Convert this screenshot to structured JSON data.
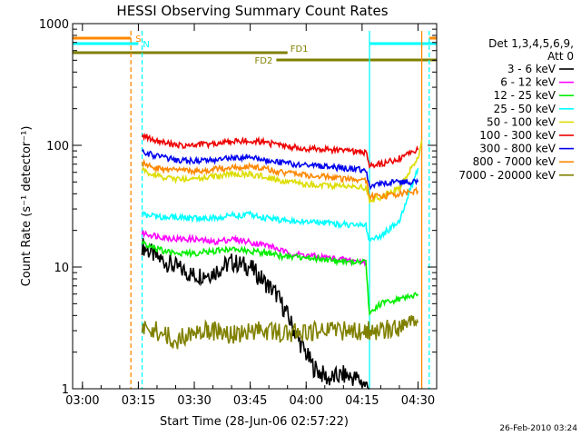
{
  "chart_data": {
    "type": "line",
    "title": "HESSI Observing Summary Count Rates",
    "xlabel": "Start Time (28-Jun-06 02:57:22)",
    "ylabel": "Count Rate (s⁻¹ detector⁻¹)",
    "y_scale": "log",
    "xlim": [
      "02:57:22",
      "04:35:00"
    ],
    "ylim": [
      1,
      1000
    ],
    "x_ticks": [
      "03:00",
      "03:15",
      "03:30",
      "03:45",
      "04:00",
      "04:15",
      "04:30"
    ],
    "y_ticks": [
      "1",
      "10",
      "100",
      "1000"
    ],
    "legend_header": [
      "Det 1,3,4,5,6,9,",
      "Att 0"
    ],
    "legend_position": "right",
    "footer": "26-Feb-2010 03:24",
    "series": [
      {
        "name": "3 - 6 keV",
        "color": "#000000",
        "x": [
          "03:16",
          "03:20",
          "03:25",
          "03:30",
          "03:35",
          "03:40",
          "03:45",
          "03:48",
          "03:52",
          "03:55",
          "03:58",
          "04:02",
          "04:06",
          "04:10",
          "04:14",
          "04:17"
        ],
        "y": [
          15,
          12,
          10,
          8.5,
          9,
          11,
          10,
          8,
          6,
          4,
          2.5,
          1.5,
          1.2,
          1.3,
          1.2,
          1
        ]
      },
      {
        "name": "6 - 12 keV",
        "color": "#ff00ff",
        "x": [
          "03:16",
          "03:20",
          "03:25",
          "03:30",
          "03:35",
          "03:40",
          "03:45",
          "03:50",
          "03:55",
          "04:00",
          "04:05",
          "04:10",
          "04:16"
        ],
        "y": [
          19,
          18,
          17,
          17,
          16,
          17,
          16,
          15,
          13,
          12.5,
          12,
          11.5,
          11
        ]
      },
      {
        "name": "12 - 25 keV",
        "color": "#00ee00",
        "x": [
          "03:16",
          "03:20",
          "03:25",
          "03:30",
          "03:35",
          "03:40",
          "03:45",
          "03:50",
          "03:55",
          "04:00",
          "04:05",
          "04:10",
          "04:16",
          "04:17",
          "04:20",
          "04:25",
          "04:30"
        ],
        "y": [
          16,
          14,
          13,
          13,
          13.5,
          14,
          13.5,
          13,
          12,
          12,
          11.5,
          11,
          11,
          4,
          5,
          5.5,
          6
        ]
      },
      {
        "name": "25 - 50 keV",
        "color": "#00ffff",
        "x": [
          "03:16",
          "03:20",
          "03:25",
          "03:30",
          "03:35",
          "03:40",
          "03:45",
          "03:50",
          "03:55",
          "04:00",
          "04:05",
          "04:10",
          "04:16",
          "04:17",
          "04:20",
          "04:25",
          "04:30"
        ],
        "y": [
          27,
          26,
          25.5,
          25,
          25.5,
          26.5,
          27,
          25,
          24,
          23.5,
          23,
          22.5,
          22,
          16,
          18,
          24,
          65
        ]
      },
      {
        "name": "50 - 100 keV",
        "color": "#dddd00",
        "x": [
          "03:16",
          "03:20",
          "03:25",
          "03:30",
          "03:35",
          "03:40",
          "03:45",
          "03:50",
          "03:55",
          "04:00",
          "04:05",
          "04:10",
          "04:16",
          "04:17",
          "04:20",
          "04:25",
          "04:30",
          "04:31"
        ],
        "y": [
          62,
          56,
          53,
          53,
          55,
          58,
          58,
          54,
          50,
          48,
          47,
          46,
          45,
          36,
          37,
          45,
          80,
          110
        ]
      },
      {
        "name": "100 - 300 keV",
        "color": "#ee0000",
        "x": [
          "03:16",
          "03:20",
          "03:25",
          "03:30",
          "03:35",
          "03:40",
          "03:45",
          "03:50",
          "03:55",
          "04:00",
          "04:05",
          "04:10",
          "04:16",
          "04:17",
          "04:20",
          "04:25",
          "04:30"
        ],
        "y": [
          120,
          110,
          100,
          100,
          103,
          108,
          110,
          104,
          98,
          94,
          92,
          90,
          87,
          68,
          70,
          78,
          92
        ]
      },
      {
        "name": "300 - 800 keV",
        "color": "#0000ee",
        "x": [
          "03:16",
          "03:20",
          "03:25",
          "03:30",
          "03:35",
          "03:40",
          "03:45",
          "03:50",
          "03:55",
          "04:00",
          "04:05",
          "04:10",
          "04:16",
          "04:17",
          "04:20",
          "04:25",
          "04:30"
        ],
        "y": [
          88,
          81,
          76,
          74,
          76,
          79,
          80,
          75,
          71,
          69,
          67,
          65,
          63,
          46,
          48,
          50,
          50
        ]
      },
      {
        "name": "800 - 7000 keV",
        "color": "#ff8800",
        "x": [
          "03:16",
          "03:20",
          "03:25",
          "03:30",
          "03:35",
          "03:40",
          "03:45",
          "03:50",
          "03:55",
          "04:00",
          "04:05",
          "04:10",
          "04:16",
          "04:17",
          "04:20",
          "04:25",
          "04:30"
        ],
        "y": [
          71,
          65,
          62,
          61,
          63,
          66,
          67,
          63,
          59,
          57,
          55,
          53,
          52,
          38,
          38,
          40,
          42
        ]
      },
      {
        "name": "7000 - 20000 keV",
        "color": "#808000",
        "x": [
          "03:16",
          "03:20",
          "03:25",
          "03:30",
          "03:35",
          "03:40",
          "03:45",
          "03:50",
          "03:55",
          "04:00",
          "04:05",
          "04:10",
          "04:16",
          "04:20",
          "04:25",
          "04:30"
        ],
        "y": [
          3,
          3,
          2.5,
          3,
          3,
          2.8,
          3,
          3,
          2.8,
          3,
          3,
          3,
          3,
          3,
          3.2,
          3.5
        ]
      }
    ],
    "flag_bars": [
      {
        "label": "S",
        "color": "#ff8800",
        "segments": [
          [
            "02:57:22",
            "03:13"
          ],
          [
            "04:33",
            "04:35"
          ]
        ]
      },
      {
        "label": "N",
        "color": "#00ffff",
        "segments": [
          [
            "02:57:22",
            "03:15"
          ],
          [
            "04:17",
            "04:35"
          ]
        ]
      },
      {
        "label": "FD1",
        "color": "#808000",
        "segments": [
          [
            "02:57:22",
            "03:55"
          ]
        ]
      },
      {
        "label": "FD2",
        "color": "#808000",
        "segments": [
          [
            "03:52",
            "04:35"
          ]
        ]
      }
    ],
    "vertical_markers": [
      {
        "x": "03:13",
        "color": "#ff8800",
        "style": "dashed"
      },
      {
        "x": "03:16",
        "color": "#00ffff",
        "style": "dashed"
      },
      {
        "x": "04:17",
        "color": "#00ffff",
        "style": "solid"
      },
      {
        "x": "04:31",
        "color": "#ff8800",
        "style": "solid"
      },
      {
        "x": "04:33",
        "color": "#00ffff",
        "style": "dashed"
      }
    ]
  }
}
